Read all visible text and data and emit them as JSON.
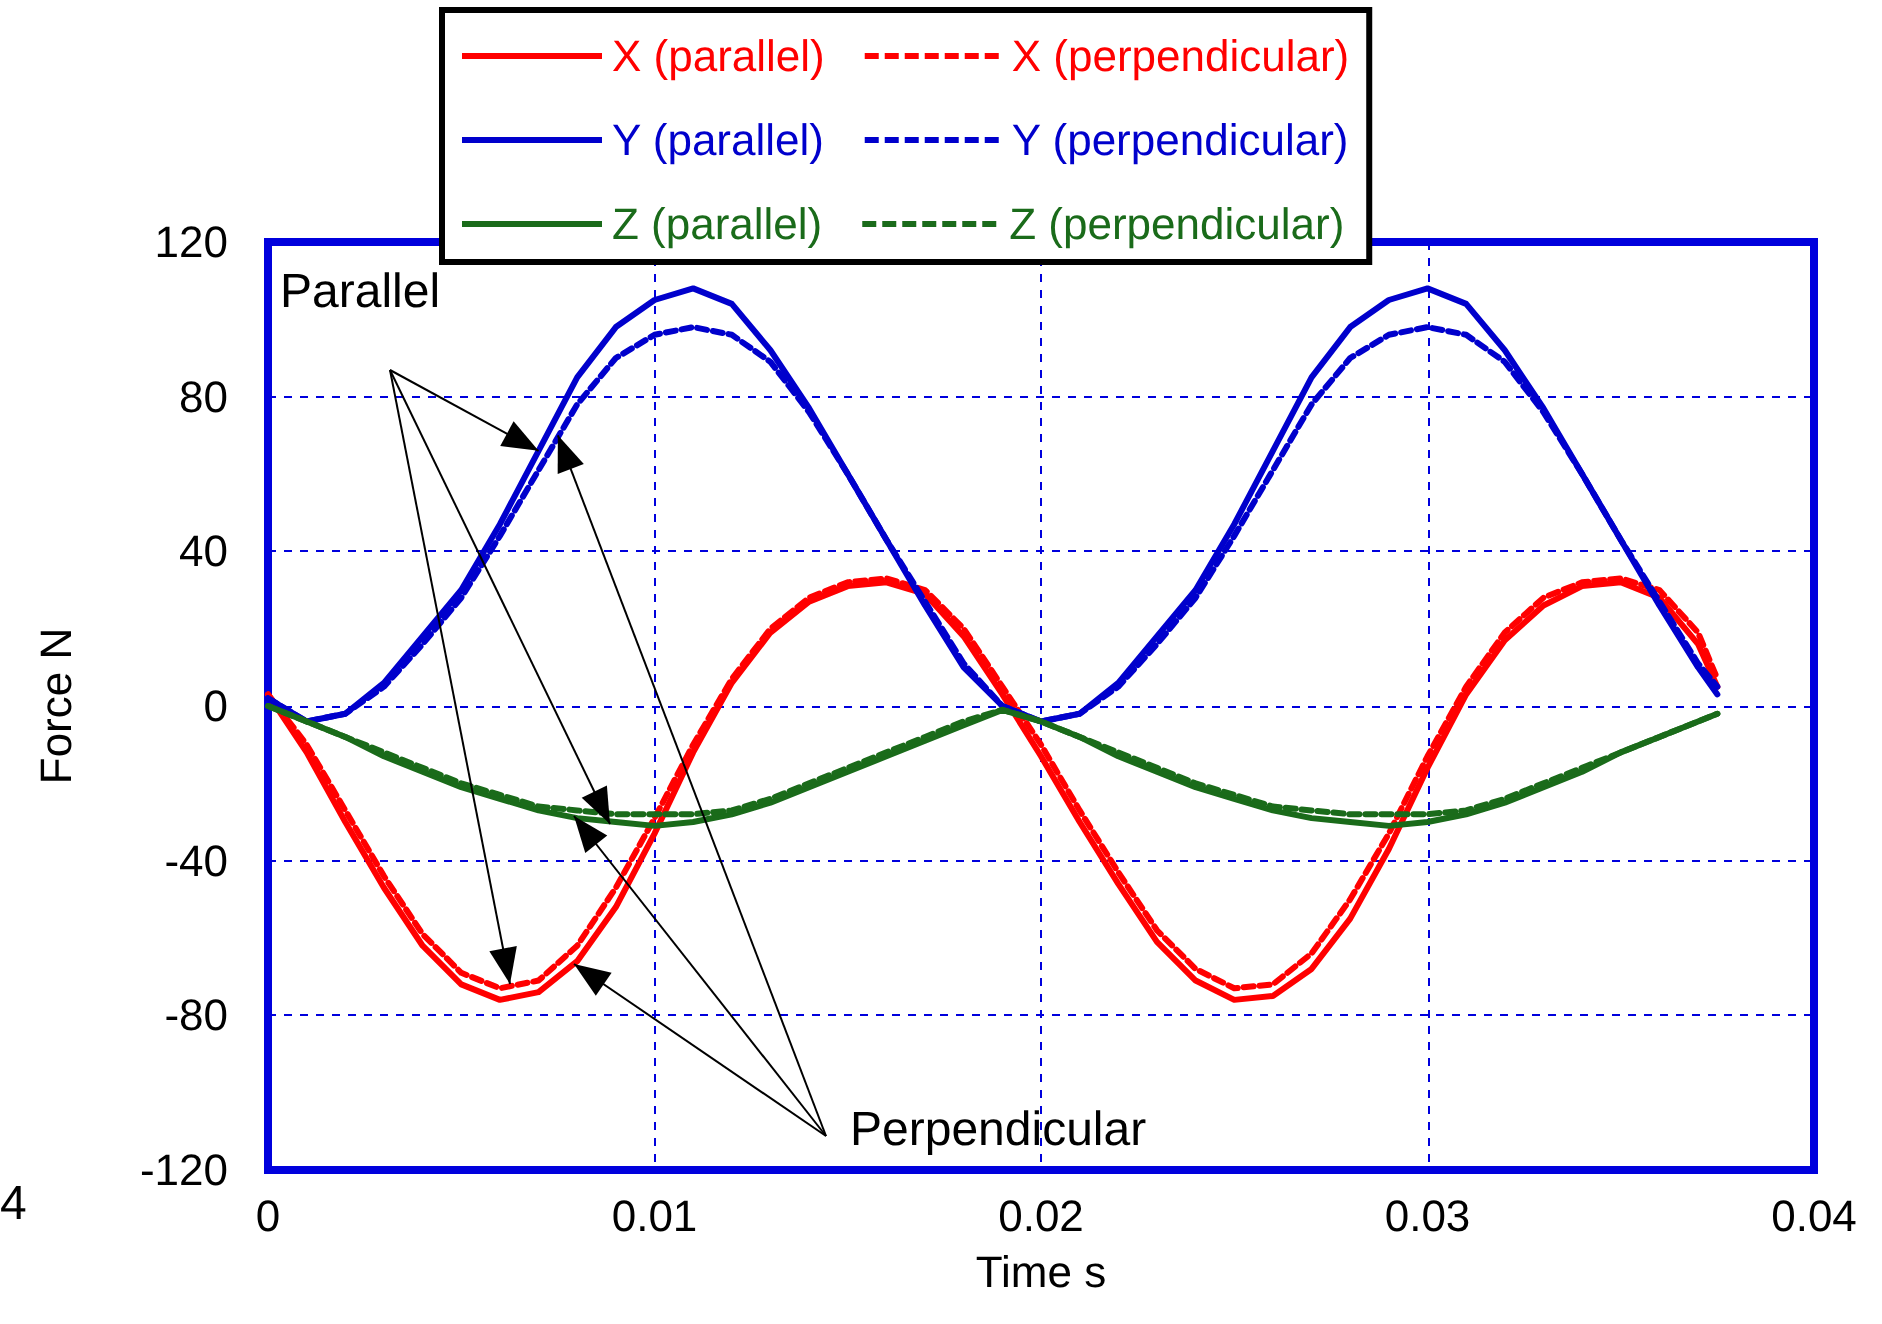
{
  "chart_data": {
    "type": "line",
    "xlabel": "Time s",
    "ylabel": "Force N",
    "xlim": [
      0,
      0.04
    ],
    "xticks": [
      0,
      0.01,
      0.02,
      0.03,
      0.04
    ],
    "ylim": [
      -120,
      120
    ],
    "yticks": [
      -120,
      -80,
      -40,
      0,
      40,
      80,
      120
    ],
    "grid": true,
    "legend": "top",
    "marker": "none",
    "annotations": [
      {
        "text": "Parallel",
        "x": 0.007,
        "y": 66
      },
      {
        "text": "Perpendicular",
        "x": 0.0075,
        "y": 70
      },
      "4"
    ],
    "x": [
      0,
      0.001,
      0.002,
      0.003,
      0.004,
      0.005,
      0.006,
      0.007,
      0.008,
      0.009,
      0.01,
      0.011,
      0.012,
      0.013,
      0.014,
      0.015,
      0.016,
      0.017,
      0.018,
      0.019,
      0.02,
      0.021,
      0.022,
      0.023,
      0.024,
      0.025,
      0.026,
      0.027,
      0.028,
      0.029,
      0.03,
      0.031,
      0.032,
      0.033,
      0.034,
      0.035,
      0.036,
      0.037,
      0.0375
    ],
    "series": [
      {
        "name": "X (parallel)",
        "color": "#ff0000",
        "line_style": "solid",
        "values": [
          3,
          -12,
          -30,
          -47,
          -62,
          -72,
          -76,
          -74,
          -66,
          -52,
          -33,
          -12,
          6,
          19,
          27,
          31,
          32,
          29,
          18,
          3,
          -13,
          -30,
          -46,
          -61,
          -71,
          -76,
          -75,
          -68,
          -55,
          -37,
          -16,
          3,
          17,
          26,
          31,
          32,
          28,
          16,
          5
        ]
      },
      {
        "name": "X (perpendicular)",
        "color": "#ff0000",
        "line_style": "dashed",
        "values": [
          3,
          -10,
          -27,
          -44,
          -59,
          -69,
          -73,
          -71,
          -62,
          -47,
          -29,
          -10,
          7,
          20,
          28,
          32,
          33,
          30,
          20,
          5,
          -10,
          -27,
          -43,
          -58,
          -68,
          -73,
          -72,
          -64,
          -50,
          -33,
          -13,
          5,
          19,
          28,
          32,
          33,
          30,
          19,
          7
        ]
      },
      {
        "name": "Y (parallel)",
        "color": "#0000cc",
        "line_style": "solid",
        "values": [
          2,
          -4,
          -2,
          6,
          18,
          30,
          47,
          66,
          85,
          98,
          105,
          108,
          104,
          92,
          77,
          60,
          43,
          26,
          10,
          0,
          -4,
          -2,
          6,
          18,
          30,
          47,
          66,
          85,
          98,
          105,
          108,
          104,
          92,
          77,
          60,
          43,
          26,
          10,
          3
        ]
      },
      {
        "name": "Y (perpendicular)",
        "color": "#0000cc",
        "line_style": "dashed",
        "values": [
          2,
          -4,
          -2,
          5,
          16,
          28,
          44,
          61,
          78,
          90,
          96,
          98,
          96,
          89,
          76,
          60,
          43,
          27,
          11,
          0,
          -4,
          -2,
          5,
          16,
          28,
          44,
          61,
          78,
          90,
          96,
          98,
          96,
          89,
          76,
          60,
          43,
          27,
          11,
          5
        ]
      },
      {
        "name": "Z (parallel)",
        "color": "#1a6b1a",
        "line_style": "solid",
        "values": [
          0,
          -4,
          -8,
          -13,
          -17,
          -21,
          -24,
          -27,
          -29,
          -30,
          -31,
          -30,
          -28,
          -25,
          -21,
          -17,
          -13,
          -9,
          -5,
          -1,
          -4,
          -8,
          -13,
          -17,
          -21,
          -24,
          -27,
          -29,
          -30,
          -31,
          -30,
          -28,
          -25,
          -21,
          -17,
          -12,
          -8,
          -4,
          -2
        ]
      },
      {
        "name": "Z (perpendicular)",
        "color": "#1a6b1a",
        "line_style": "dashed",
        "values": [
          0,
          -4,
          -8,
          -12,
          -16,
          -20,
          -23,
          -26,
          -27,
          -28,
          -28,
          -28,
          -27,
          -24,
          -20,
          -16,
          -12,
          -8,
          -4,
          -1,
          -4,
          -8,
          -12,
          -16,
          -20,
          -23,
          -26,
          -27,
          -28,
          -28,
          -28,
          -27,
          -24,
          -20,
          -16,
          -12,
          -8,
          -4,
          -2
        ]
      }
    ]
  }
}
